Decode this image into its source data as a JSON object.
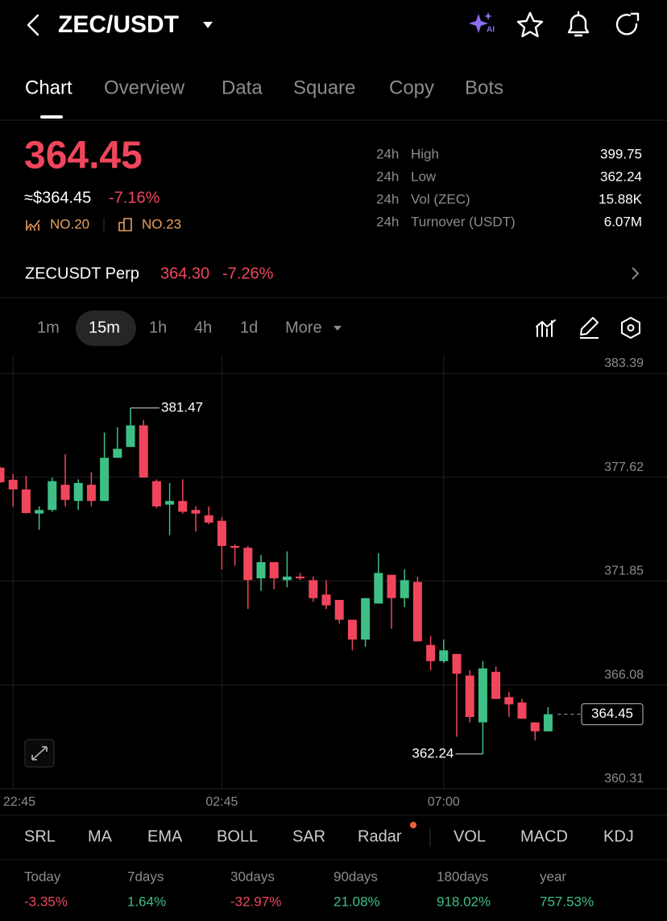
{
  "header": {
    "pair": "ZEC/USDT",
    "ai_badge": "AI"
  },
  "tabs": [
    "Chart",
    "Overview",
    "Data",
    "Square",
    "Copy",
    "Bots"
  ],
  "price": {
    "last": "364.45",
    "usd": "≈$364.45",
    "change": "-7.16%",
    "rank_1": "NO.20",
    "rank_2": "NO.23"
  },
  "stats": [
    {
      "period": "24h",
      "label": "High",
      "value": "399.75"
    },
    {
      "period": "24h",
      "label": "Low",
      "value": "362.24"
    },
    {
      "period": "24h",
      "label": "Vol (ZEC)",
      "value": "15.88K"
    },
    {
      "period": "24h",
      "label": "Turnover (USDT)",
      "value": "6.07M"
    }
  ],
  "perp": {
    "name": "ZECUSDT Perp",
    "price": "364.30",
    "change": "-7.26%"
  },
  "intervals": [
    "1m",
    "15m",
    "1h",
    "4h",
    "1d",
    "More"
  ],
  "chart_data": {
    "type": "candlestick",
    "categories": [
      null,
      "22:45",
      null,
      null,
      null,
      null,
      null,
      null,
      null,
      null,
      null,
      null,
      null,
      null,
      null,
      null,
      null,
      "02:45",
      null,
      null,
      null,
      null,
      null,
      null,
      null,
      null,
      null,
      null,
      null,
      null,
      null,
      null,
      null,
      null,
      "07:00",
      null,
      null,
      null,
      null,
      null,
      null,
      null,
      null
    ],
    "candles": [
      {
        "open": 378.15,
        "high": 378.2,
        "low": 377.3,
        "close": 377.34
      },
      {
        "open": 377.48,
        "high": 377.8,
        "low": 376.0,
        "close": 376.94
      },
      {
        "open": 376.94,
        "high": 377.7,
        "low": 375.6,
        "close": 375.63
      },
      {
        "open": 375.6,
        "high": 376.0,
        "low": 374.7,
        "close": 375.8
      },
      {
        "open": 375.8,
        "high": 377.6,
        "low": 375.7,
        "close": 377.4
      },
      {
        "open": 377.2,
        "high": 378.9,
        "low": 376.0,
        "close": 376.36
      },
      {
        "open": 376.3,
        "high": 377.5,
        "low": 375.8,
        "close": 377.3
      },
      {
        "open": 377.2,
        "high": 377.9,
        "low": 376.0,
        "close": 376.3
      },
      {
        "open": 376.3,
        "high": 380.1,
        "low": 376.3,
        "close": 378.7
      },
      {
        "open": 378.7,
        "high": 380.4,
        "low": 378.7,
        "close": 379.2
      },
      {
        "open": 379.3,
        "high": 381.47,
        "low": 379.3,
        "close": 380.5
      },
      {
        "open": 380.5,
        "high": 380.8,
        "low": 377.6,
        "close": 377.6
      },
      {
        "open": 377.4,
        "high": 377.5,
        "low": 375.9,
        "close": 376.0
      },
      {
        "open": 376.1,
        "high": 377.3,
        "low": 374.4,
        "close": 376.3
      },
      {
        "open": 376.3,
        "high": 377.5,
        "low": 375.6,
        "close": 375.7
      },
      {
        "open": 375.8,
        "high": 376.0,
        "low": 374.6,
        "close": 375.6
      },
      {
        "open": 375.5,
        "high": 376.0,
        "low": 375.0,
        "close": 375.1
      },
      {
        "open": 375.2,
        "high": 375.4,
        "low": 372.5,
        "close": 373.8
      },
      {
        "open": 373.8,
        "high": 373.9,
        "low": 372.7,
        "close": 373.7
      },
      {
        "open": 373.7,
        "high": 373.8,
        "low": 370.3,
        "close": 371.9
      },
      {
        "open": 372.0,
        "high": 373.3,
        "low": 371.3,
        "close": 372.9
      },
      {
        "open": 372.9,
        "high": 372.9,
        "low": 371.4,
        "close": 372.0
      },
      {
        "open": 371.9,
        "high": 373.5,
        "low": 371.5,
        "close": 372.1
      },
      {
        "open": 372.1,
        "high": 372.3,
        "low": 371.9,
        "close": 372.0
      },
      {
        "open": 371.9,
        "high": 372.1,
        "low": 370.7,
        "close": 370.9
      },
      {
        "open": 371.1,
        "high": 371.9,
        "low": 370.3,
        "close": 370.5
      },
      {
        "open": 370.8,
        "high": 370.8,
        "low": 369.5,
        "close": 369.7
      },
      {
        "open": 369.7,
        "high": 369.7,
        "low": 368.0,
        "close": 368.6
      },
      {
        "open": 368.6,
        "high": 370.9,
        "low": 368.2,
        "close": 370.9
      },
      {
        "open": 370.6,
        "high": 373.4,
        "low": 370.6,
        "close": 372.3
      },
      {
        "open": 372.2,
        "high": 372.2,
        "low": 369.2,
        "close": 370.9
      },
      {
        "open": 370.9,
        "high": 372.5,
        "low": 370.4,
        "close": 371.9
      },
      {
        "open": 371.8,
        "high": 372.1,
        "low": 368.5,
        "close": 368.5
      },
      {
        "open": 368.3,
        "high": 368.8,
        "low": 366.9,
        "close": 367.4
      },
      {
        "open": 367.4,
        "high": 368.6,
        "low": 367.3,
        "close": 368.0
      },
      {
        "open": 367.8,
        "high": 367.8,
        "low": 363.2,
        "close": 366.7
      },
      {
        "open": 366.6,
        "high": 366.9,
        "low": 364.0,
        "close": 364.3
      },
      {
        "open": 364.0,
        "high": 367.4,
        "low": 362.24,
        "close": 367.0
      },
      {
        "open": 366.8,
        "high": 367.1,
        "low": 365.3,
        "close": 365.3
      },
      {
        "open": 365.4,
        "high": 365.7,
        "low": 364.3,
        "close": 365.0
      },
      {
        "open": 365.1,
        "high": 365.3,
        "low": 364.2,
        "close": 364.2
      },
      {
        "open": 364.0,
        "high": 364.0,
        "low": 363.0,
        "close": 363.5
      },
      {
        "open": 363.5,
        "high": 364.85,
        "low": 363.5,
        "close": 364.45
      }
    ],
    "ylim": [
      360.31,
      384.42
    ],
    "yticks": [
      383.39,
      377.62,
      371.85,
      366.08,
      360.31
    ],
    "grid": true,
    "up_color": "#3ebf86",
    "down_color": "#f0465c"
  },
  "indicators": [
    "SRL",
    "MA",
    "EMA",
    "BOLL",
    "SAR",
    "Radar",
    "VOL",
    "MACD",
    "KDJ"
  ],
  "performance": [
    {
      "period": "Today",
      "value": "-3.35%"
    },
    {
      "period": "7days",
      "value": "1.64%"
    },
    {
      "period": "30days",
      "value": "-32.97%"
    },
    {
      "period": "90days",
      "value": "21.08%"
    },
    {
      "period": "180days",
      "value": "918.02%"
    },
    {
      "period": "year",
      "value": "757.53%"
    }
  ]
}
